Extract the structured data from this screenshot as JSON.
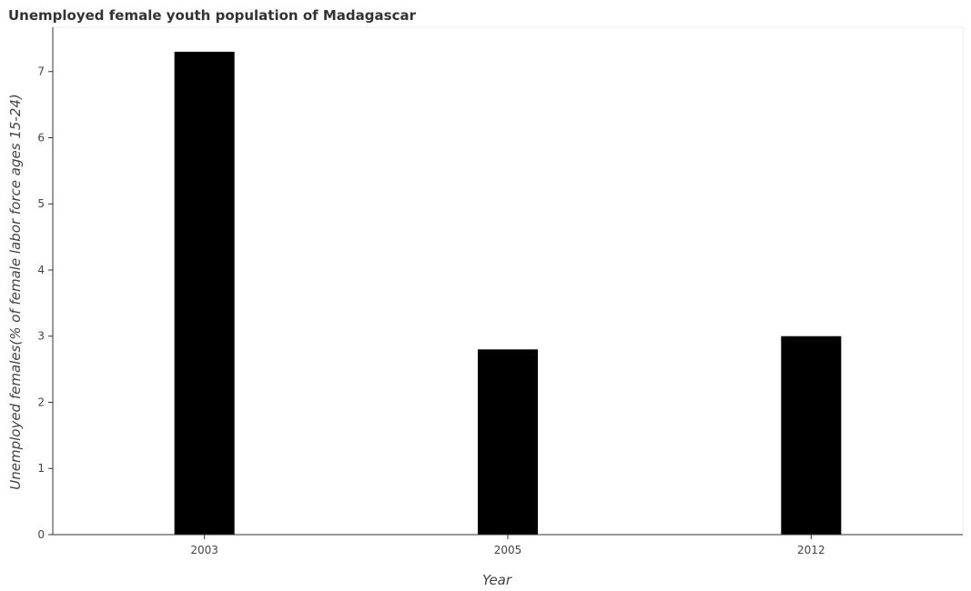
{
  "chart_data": {
    "type": "bar",
    "title": "Unemployed female youth population of Madagascar",
    "xlabel": "Year",
    "ylabel": "Unemployed females(% of female labor force ages 15-24)",
    "categories": [
      "2003",
      "2005",
      "2012"
    ],
    "values": [
      7.3,
      2.8,
      3.0
    ],
    "ylim": [
      0,
      7.67
    ],
    "yticks": [
      0,
      1,
      2,
      3,
      4,
      5,
      6,
      7
    ],
    "grid": false,
    "bar_color": "#000000"
  }
}
